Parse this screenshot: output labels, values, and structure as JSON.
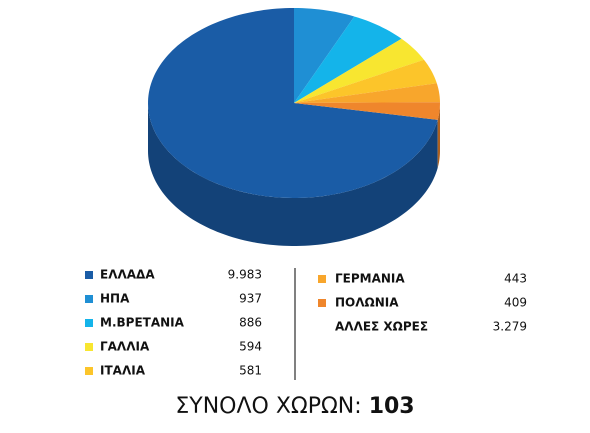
{
  "chart_data": {
    "type": "pie3d",
    "categories": [
      "ΕΛΛΑΔΑ",
      "ΗΠΑ",
      "Μ.ΒΡΕΤΑΝΙΑ",
      "ΓΑΛΛΙΑ",
      "ΙΤΑΛΙΑ",
      "ΓΕΡΜΑΝΙΑ",
      "ΠΟΛΩΝΙΑ",
      "ΑΛΛΕΣ ΧΩΡΕΣ"
    ],
    "values": [
      9983,
      937,
      886,
      594,
      581,
      443,
      409,
      3279
    ],
    "value_labels": [
      "9.983",
      "937",
      "886",
      "594",
      "581",
      "443",
      "409",
      "3.279"
    ],
    "colors": [
      "#1a5ca6",
      "#1f8fd4",
      "#14b4ea",
      "#f8e630",
      "#fcc52a",
      "#f8a62c",
      "#ef862c",
      null
    ],
    "total_label": "ΣΥΝΟΛΟ ΧΩΡΩΝ:",
    "total": 103
  }
}
